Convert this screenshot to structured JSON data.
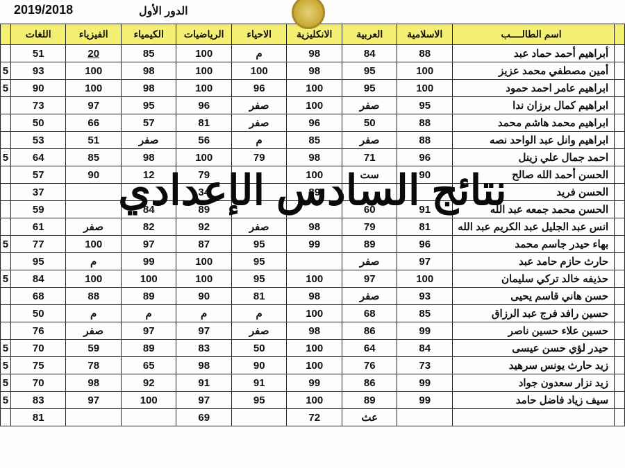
{
  "header": {
    "year": "2019/2018",
    "round": "الدور الأول"
  },
  "overlay_text": "نتائج السادس الإعدادي",
  "columns": [
    {
      "key": "name",
      "label": "اسم الطالــــب",
      "class": "name-col"
    },
    {
      "key": "islamic",
      "label": "الاسلامية",
      "class": "num-col"
    },
    {
      "key": "arabic",
      "label": "العربية",
      "class": "num-col"
    },
    {
      "key": "english",
      "label": "الانكليزية",
      "class": "num-col"
    },
    {
      "key": "bio",
      "label": "الاحياء",
      "class": "num-col"
    },
    {
      "key": "math",
      "label": "الرياضيات",
      "class": "num-col"
    },
    {
      "key": "chem",
      "label": "الكيمياء",
      "class": "num-col"
    },
    {
      "key": "phys",
      "label": "الفيزياء",
      "class": "num-col"
    },
    {
      "key": "lang",
      "label": "اللغات",
      "class": "num-col"
    }
  ],
  "rows": [
    {
      "name": "أبراهيم أحمد حماد عبد",
      "islamic": "88",
      "arabic": "84",
      "english": "98",
      "bio": "م",
      "math": "100",
      "chem": "85",
      "phys": "20",
      "phys_underline": true,
      "lang": "51",
      "cut": ""
    },
    {
      "name": "أمين مصطفي محمد عزيز",
      "islamic": "100",
      "arabic": "95",
      "english": "98",
      "bio": "100",
      "math": "100",
      "chem": "98",
      "phys": "100",
      "lang": "93",
      "cut": "5"
    },
    {
      "name": "ابراهيم عامر احمد حمود",
      "islamic": "100",
      "arabic": "95",
      "english": "100",
      "bio": "96",
      "math": "100",
      "chem": "98",
      "phys": "100",
      "lang": "90",
      "cut": "5"
    },
    {
      "name": "ابراهيم كمال برزان ندا",
      "islamic": "95",
      "arabic": "صفر",
      "english": "100",
      "bio": "صفر",
      "math": "96",
      "chem": "95",
      "phys": "97",
      "lang": "73",
      "cut": ""
    },
    {
      "name": "ابراهيم محمد هاشم محمد",
      "islamic": "88",
      "arabic": "50",
      "english": "96",
      "bio": "صفر",
      "math": "81",
      "chem": "57",
      "phys": "66",
      "lang": "50",
      "cut": ""
    },
    {
      "name": "ابراهيم وانل عبد الواحد نصه",
      "islamic": "88",
      "arabic": "صفر",
      "english": "85",
      "bio": "م",
      "math": "56",
      "chem": "صفر",
      "phys": "51",
      "lang": "53",
      "cut": ""
    },
    {
      "name": "احمد جمال علي زينل",
      "islamic": "96",
      "arabic": "71",
      "english": "98",
      "bio": "79",
      "math": "100",
      "chem": "98",
      "phys": "85",
      "lang": "64",
      "cut": "5"
    },
    {
      "name": "الحسن أحمد الله صالح",
      "islamic": "90",
      "arabic": "ست",
      "english": "100",
      "bio": "",
      "math": "79",
      "chem": "12",
      "phys": "90",
      "lang": "57",
      "cut": ""
    },
    {
      "name": "الحسن فريد",
      "islamic": "",
      "arabic": "",
      "english": "89",
      "bio": "",
      "math": "34",
      "chem": "",
      "phys": "",
      "lang": "37",
      "cut": ""
    },
    {
      "name": "الحسن محمد جمعه عبد الله",
      "islamic": "91",
      "arabic": "60",
      "english": "",
      "bio": "",
      "math": "89",
      "chem": "84",
      "phys": "",
      "lang": "59",
      "cut": ""
    },
    {
      "name": "انس عبد الجليل عبد الكريم عبد الله",
      "islamic": "81",
      "arabic": "79",
      "english": "98",
      "bio": "صفر",
      "math": "92",
      "chem": "82",
      "phys": "صفر",
      "lang": "61",
      "cut": ""
    },
    {
      "name": "بهاء حيدر جاسم محمد",
      "islamic": "96",
      "arabic": "89",
      "english": "99",
      "bio": "95",
      "math": "87",
      "chem": "97",
      "phys": "100",
      "lang": "77",
      "cut": "5"
    },
    {
      "name": "حارث حازم حامد عبد",
      "islamic": "97",
      "arabic": "صفر",
      "english": "",
      "bio": "95",
      "math": "100",
      "chem": "99",
      "phys": "م",
      "lang": "95",
      "cut": ""
    },
    {
      "name": "حذيفه خالد تركي سليمان",
      "islamic": "100",
      "arabic": "97",
      "english": "100",
      "bio": "95",
      "math": "100",
      "chem": "100",
      "phys": "100",
      "lang": "84",
      "cut": "5"
    },
    {
      "name": "حسن هاني قاسم يحيى",
      "islamic": "93",
      "arabic": "صفر",
      "english": "98",
      "bio": "81",
      "math": "90",
      "chem": "89",
      "phys": "88",
      "lang": "68",
      "cut": ""
    },
    {
      "name": "حسين رافد فرج عبد الرزاق",
      "islamic": "85",
      "arabic": "68",
      "english": "100",
      "bio": "م",
      "math": "م",
      "chem": "م",
      "phys": "م",
      "lang": "50",
      "cut": ""
    },
    {
      "name": "حسين علاء حسين ناصر",
      "islamic": "99",
      "arabic": "86",
      "english": "98",
      "bio": "صفر",
      "math": "97",
      "chem": "97",
      "phys": "صفر",
      "lang": "76",
      "cut": ""
    },
    {
      "name": "حيدر لؤي حسن عيسى",
      "islamic": "84",
      "arabic": "64",
      "english": "100",
      "bio": "50",
      "math": "83",
      "chem": "89",
      "phys": "59",
      "lang": "70",
      "cut": "5"
    },
    {
      "name": "زيد حارث يونس سرهيد",
      "islamic": "73",
      "arabic": "76",
      "english": "100",
      "bio": "90",
      "math": "98",
      "chem": "65",
      "phys": "78",
      "lang": "75",
      "cut": "5"
    },
    {
      "name": "زيد نزار سعدون جواد",
      "islamic": "99",
      "arabic": "86",
      "english": "99",
      "bio": "91",
      "math": "91",
      "chem": "92",
      "phys": "98",
      "lang": "70",
      "cut": "5"
    },
    {
      "name": "سيف زياد فاضل حامد",
      "islamic": "99",
      "arabic": "89",
      "english": "100",
      "bio": "95",
      "math": "97",
      "chem": "100",
      "phys": "97",
      "lang": "83",
      "cut": "5"
    },
    {
      "name": "",
      "islamic": "",
      "arabic": "عث",
      "english": "72",
      "bio": "",
      "math": "69",
      "chem": "",
      "phys": "",
      "lang": "81",
      "cut": ""
    }
  ],
  "styles": {
    "header_bg": "#f4ee72",
    "border_color": "#222222",
    "page_bg": "#fdfdfb",
    "text_color": "#111111",
    "overlay_color": "#0a0a0a"
  }
}
